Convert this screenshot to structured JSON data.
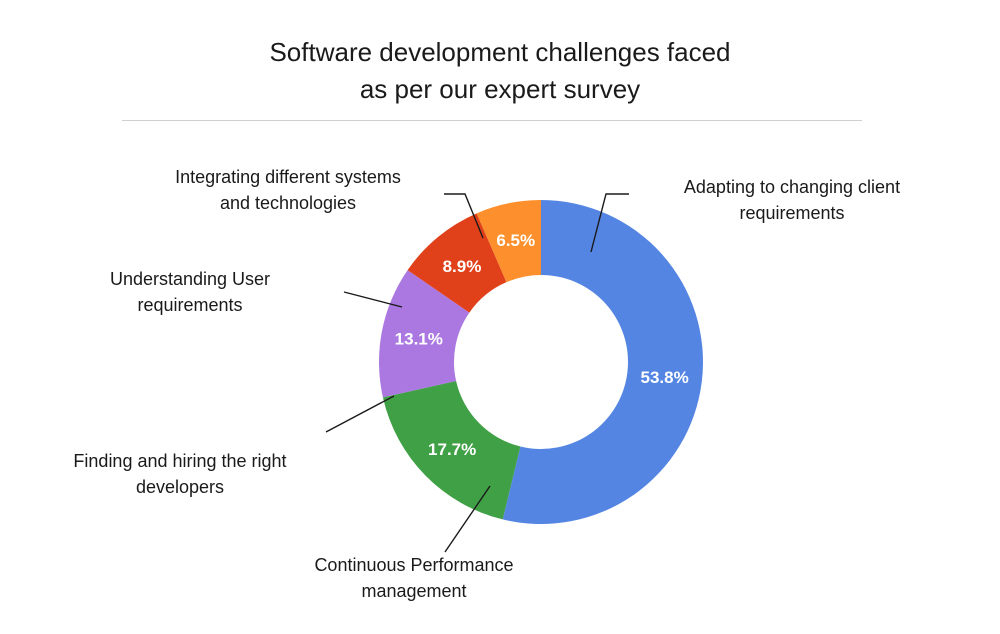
{
  "chart_data": {
    "type": "pie",
    "title_lines": [
      "Software development challenges faced",
      "as per our expert survey"
    ],
    "unit": "%",
    "slices": [
      {
        "label_lines": [
          "Adapting to changing client",
          "requirements"
        ],
        "value": 53.8,
        "value_label": "53.8%",
        "color": "#5585e3"
      },
      {
        "label_lines": [
          "Continuous Performance",
          "management"
        ],
        "value": 17.7,
        "value_label": "17.7%",
        "color": "#40a046"
      },
      {
        "label_lines": [
          "Finding and hiring the right",
          "developers"
        ],
        "value": 13.1,
        "value_label": "13.1%",
        "color": "#aa78e0"
      },
      {
        "label_lines": [
          "Understanding User",
          "requirements"
        ],
        "value": 8.9,
        "value_label": "8.9%",
        "color": "#e1411a"
      },
      {
        "label_lines": [
          "Integrating different systems",
          "and technologies"
        ],
        "value": 6.5,
        "value_label": "6.5%",
        "color": "#fd8f2c"
      }
    ]
  }
}
